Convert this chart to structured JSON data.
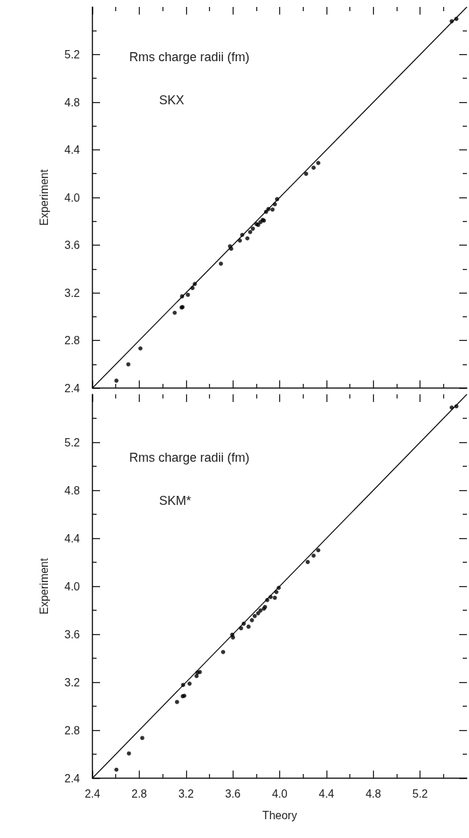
{
  "chart_data": [
    {
      "type": "scatter",
      "ylabel": "Experiment",
      "annotations": [
        "Rms charge radii (fm)",
        "SKX"
      ],
      "xlim": [
        2.4,
        5.6
      ],
      "ylim": [
        2.4,
        5.6
      ],
      "xticks": [
        2.4,
        {
          "value": 2.6,
          "label": null
        },
        2.8,
        {
          "value": 3.0,
          "label": null
        },
        3.2,
        {
          "value": 3.4,
          "label": null
        },
        3.6,
        {
          "value": 3.8,
          "label": null
        },
        4.0,
        {
          "value": 4.2,
          "label": null
        },
        4.4,
        {
          "value": 4.6,
          "label": null
        },
        4.8,
        {
          "value": 5.0,
          "label": null
        },
        5.2,
        {
          "value": 5.4,
          "label": null
        }
      ],
      "yticks": [
        2.4,
        {
          "value": 2.6,
          "label": null
        },
        2.8,
        {
          "value": 3.0,
          "label": null
        },
        3.2,
        {
          "value": 3.4,
          "label": null
        },
        3.6,
        {
          "value": 3.8,
          "label": null
        },
        {
          "value": 4.0,
          "label": "4.0"
        },
        {
          "value": 4.2,
          "label": null
        },
        4.4,
        {
          "value": 4.6,
          "label": null
        },
        4.8,
        {
          "value": 5.0,
          "label": null
        },
        5.2,
        {
          "value": 5.4,
          "label": null
        }
      ],
      "tick_labels": "y",
      "grid": false,
      "marker": "circle",
      "series": [
        {
          "color": "#000000",
          "x": [
            2.605,
            2.707,
            2.81,
            3.103,
            3.162,
            3.17,
            3.166,
            3.216,
            3.255,
            3.275,
            3.498,
            3.576,
            3.586,
            3.66,
            3.68,
            3.724,
            3.748,
            3.771,
            3.802,
            3.816,
            3.836,
            3.855,
            3.865,
            3.884,
            3.904,
            3.939,
            3.959,
            3.978,
            4.226,
            4.29,
            4.33,
            5.47,
            5.51
          ],
          "values": [
            2.462,
            2.599,
            2.733,
            3.032,
            3.077,
            3.08,
            3.17,
            3.183,
            3.24,
            3.274,
            3.444,
            3.59,
            3.57,
            3.638,
            3.686,
            3.657,
            3.71,
            3.738,
            3.777,
            3.77,
            3.793,
            3.812,
            3.806,
            3.88,
            3.903,
            3.899,
            3.943,
            3.986,
            4.199,
            4.25,
            4.29,
            5.48,
            5.5
          ]
        },
        {
          "type": "line",
          "color": "#000000",
          "marker": "none",
          "x": [
            2.4,
            5.6
          ],
          "values": [
            2.4,
            5.6
          ]
        }
      ]
    },
    {
      "type": "scatter",
      "xlabel": "Theory",
      "ylabel": "Experiment",
      "annotations": [
        "Rms charge radii (fm)",
        "SKM*"
      ],
      "xlim": [
        2.4,
        5.6
      ],
      "ylim": [
        2.4,
        5.6
      ],
      "xticks": [
        2.4,
        {
          "value": 2.6,
          "label": null
        },
        2.8,
        {
          "value": 3.0,
          "label": null
        },
        3.2,
        {
          "value": 3.4,
          "label": null
        },
        3.6,
        {
          "value": 3.8,
          "label": null
        },
        {
          "value": 4.0,
          "label": "4.0"
        },
        {
          "value": 4.2,
          "label": null
        },
        4.4,
        {
          "value": 4.6,
          "label": null
        },
        4.8,
        {
          "value": 5.0,
          "label": null
        },
        5.2,
        {
          "value": 5.4,
          "label": null
        }
      ],
      "yticks": [
        2.4,
        {
          "value": 2.6,
          "label": null
        },
        2.8,
        {
          "value": 3.0,
          "label": null
        },
        3.2,
        {
          "value": 3.4,
          "label": null
        },
        3.6,
        {
          "value": 3.8,
          "label": null
        },
        {
          "value": 4.0,
          "label": "4.0"
        },
        {
          "value": 4.2,
          "label": null
        },
        4.4,
        {
          "value": 4.6,
          "label": null
        },
        4.8,
        {
          "value": 5.0,
          "label": null
        },
        5.2,
        {
          "value": 5.4,
          "label": null
        }
      ],
      "grid": false,
      "marker": "circle",
      "series": [
        {
          "color": "#000000",
          "x": [
            2.605,
            2.712,
            2.826,
            3.123,
            3.172,
            3.185,
            3.175,
            3.23,
            3.29,
            3.298,
            3.318,
            3.517,
            3.595,
            3.601,
            3.67,
            3.693,
            3.734,
            3.763,
            3.787,
            3.816,
            3.836,
            3.865,
            3.875,
            3.894,
            3.923,
            3.959,
            3.972,
            3.992,
            4.24,
            4.29,
            4.33,
            5.47,
            5.51
          ],
          "values": [
            2.471,
            2.606,
            2.735,
            3.035,
            3.083,
            3.087,
            3.177,
            3.188,
            3.252,
            3.28,
            3.285,
            3.452,
            3.596,
            3.573,
            3.65,
            3.688,
            3.663,
            3.717,
            3.752,
            3.775,
            3.798,
            3.813,
            3.827,
            3.885,
            3.91,
            3.904,
            3.952,
            3.987,
            4.202,
            4.255,
            4.3,
            5.49,
            5.5
          ]
        },
        {
          "type": "line",
          "color": "#000000",
          "marker": "none",
          "x": [
            2.4,
            5.6
          ],
          "values": [
            2.4,
            5.6
          ]
        }
      ]
    }
  ]
}
